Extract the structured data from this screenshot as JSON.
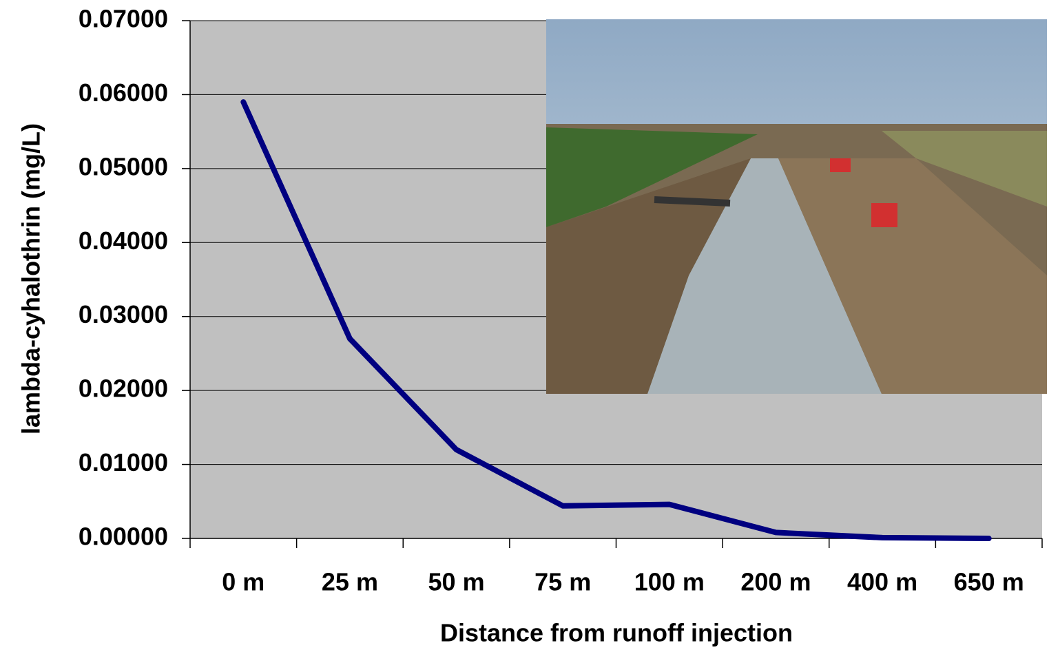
{
  "chart_data": {
    "type": "line",
    "x_label": "Distance from runoff injection",
    "y_label": "lambda-cyhalothrin (mg/L)",
    "categories": [
      "0 m",
      "25 m",
      "50 m",
      "75 m",
      "100 m",
      "200 m",
      "400 m",
      "650 m"
    ],
    "series": [
      {
        "name": "lambda-cyhalothrin",
        "color": "#000080",
        "values": [
          0.059,
          0.027,
          0.012,
          0.0044,
          0.0046,
          0.0008,
          0.0001,
          0.0
        ]
      }
    ],
    "ylim": [
      0,
      0.07
    ],
    "yticks": [
      {
        "value": 0,
        "label": "0.00000"
      },
      {
        "value": 0.01,
        "label": "0.01000"
      },
      {
        "value": 0.02,
        "label": "0.02000"
      },
      {
        "value": 0.03,
        "label": "0.03000"
      },
      {
        "value": 0.04,
        "label": "0.04000"
      },
      {
        "value": 0.05,
        "label": "0.05000"
      },
      {
        "value": 0.06,
        "label": "0.06000"
      },
      {
        "value": 0.07,
        "label": "0.07000"
      }
    ],
    "grid": true
  }
}
